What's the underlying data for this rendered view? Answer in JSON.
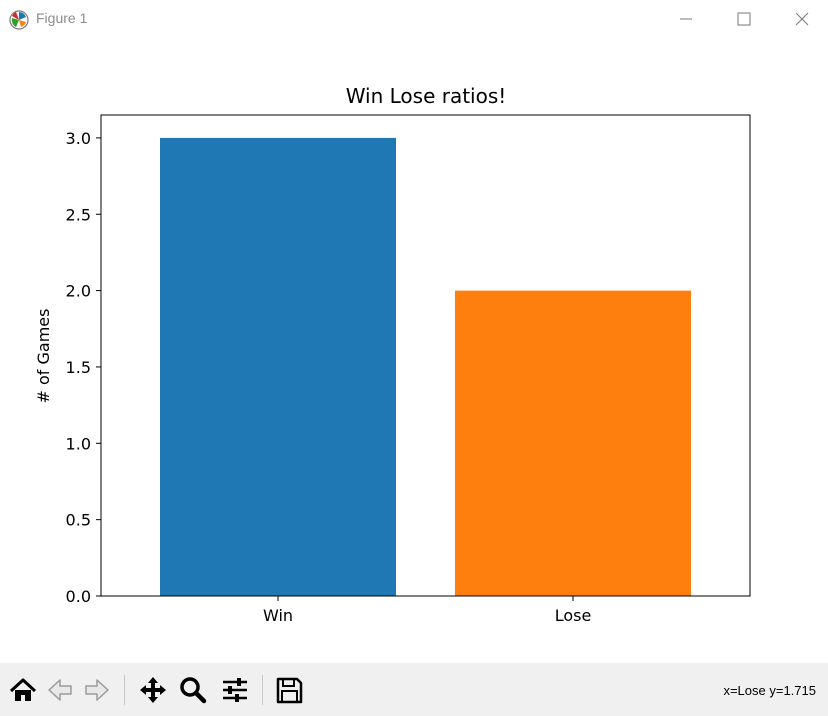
{
  "window": {
    "title": "Figure 1",
    "icons": [
      "matplotlib-icon",
      "minimize-icon",
      "maximize-icon",
      "close-icon"
    ]
  },
  "toolbar": {
    "buttons": [
      "home-icon",
      "back-icon",
      "forward-icon",
      "pan-icon",
      "zoom-icon",
      "configure-subplots-icon",
      "save-icon"
    ],
    "coords": "x=Lose y=1.715"
  },
  "chart_data": {
    "type": "bar",
    "title": "Win Lose ratios!",
    "xlabel": "",
    "ylabel": "# of Games",
    "categories": [
      "Win",
      "Lose"
    ],
    "values": [
      3,
      2
    ],
    "colors": [
      "#1f77b4",
      "#ff7f0e"
    ],
    "ylim": [
      0,
      3.15
    ],
    "yticks": [
      0.0,
      0.5,
      1.0,
      1.5,
      2.0,
      2.5,
      3.0
    ],
    "ytick_labels": [
      "0.0",
      "0.5",
      "1.0",
      "1.5",
      "2.0",
      "2.5",
      "3.0"
    ],
    "grid": false,
    "legend": "none"
  }
}
